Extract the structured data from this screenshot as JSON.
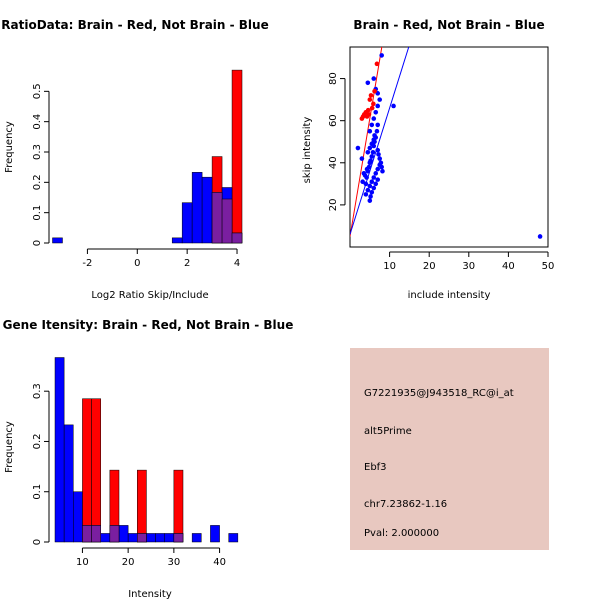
{
  "colors": {
    "red": "#ff0000",
    "blue": "#0000ff",
    "overlap": "#7a1fa0",
    "info_bg": "#e8c8c0",
    "pval": "#aa0000"
  },
  "chart_data": [
    {
      "id": "ratio",
      "type": "bar",
      "title": "RatioData: Brain - Red, Not Brain - Blue",
      "xlabel": "Log2 Ratio Skip/Include",
      "ylabel": "Frequency",
      "xlim": [
        -3.3,
        4.4
      ],
      "ylim": [
        0,
        0.6
      ],
      "xticks": [
        -2,
        0,
        2,
        4
      ],
      "yticks": [
        0,
        0.1,
        0.2,
        0.3,
        0.4,
        0.5
      ],
      "bin_width": 0.4,
      "series": [
        {
          "name": "Brain",
          "color": "red",
          "bins": [
            [
              3.2,
              0.285
            ],
            [
              3.6,
              0.145
            ],
            [
              4.0,
              0.57
            ]
          ]
        },
        {
          "name": "Not Brain",
          "color": "blue",
          "bins": [
            [
              -3.2,
              0.017
            ],
            [
              1.6,
              0.017
            ],
            [
              2.0,
              0.133
            ],
            [
              2.4,
              0.233
            ],
            [
              2.8,
              0.217
            ],
            [
              3.2,
              0.167
            ],
            [
              3.6,
              0.183
            ],
            [
              4.0,
              0.033
            ]
          ]
        }
      ]
    },
    {
      "id": "scatter",
      "type": "scatter",
      "title": "Brain - Red, Not Brain - Blue",
      "xlabel": "include intensity",
      "ylabel": "skip intensity",
      "xlim": [
        0,
        50
      ],
      "ylim": [
        0,
        95
      ],
      "xticks": [
        10,
        20,
        30,
        40,
        50
      ],
      "yticks": [
        20,
        40,
        60,
        80
      ],
      "lines": [
        {
          "color": "red",
          "intercept": 5,
          "slope": 11.2
        },
        {
          "color": "blue",
          "intercept": 6,
          "slope": 6.0
        }
      ],
      "series": [
        {
          "name": "Brain",
          "color": "red",
          "x": [
            3.0,
            3.3,
            3.6,
            4.0,
            4.3,
            4.6,
            5.0,
            5.3,
            5.6,
            5.9,
            6.2,
            4.8,
            6.8
          ],
          "y": [
            61,
            62,
            63,
            64,
            62,
            65,
            70,
            72,
            66,
            68,
            74,
            63,
            87
          ]
        },
        {
          "name": "Not Brain",
          "color": "blue",
          "x": [
            8.0,
            4.5,
            6.0,
            6.5,
            7.0,
            2.0,
            3.0,
            3.5,
            4.0,
            4.2,
            4.5,
            4.8,
            5.0,
            5.2,
            5.5,
            5.8,
            6.0,
            6.2,
            6.5,
            6.8,
            7.0,
            7.2,
            7.5,
            7.8,
            8.0,
            8.2,
            4.0,
            4.5,
            5.0,
            5.5,
            6.0,
            6.5,
            7.0,
            7.5,
            5.0,
            5.5,
            6.0,
            6.5,
            7.0,
            7.5,
            11.0,
            6.0,
            6.5,
            7.0,
            5.0,
            5.2,
            5.5,
            6.0,
            6.2,
            4.5,
            5.0,
            5.5,
            6.0,
            7.0,
            48.0,
            3.2,
            3.8,
            4.3
          ],
          "y": [
            91,
            78,
            80,
            75,
            73,
            47,
            42,
            35,
            30,
            33,
            36,
            38,
            40,
            41,
            43,
            45,
            48,
            50,
            52,
            55,
            46,
            44,
            42,
            40,
            38,
            36,
            25,
            27,
            29,
            31,
            33,
            35,
            37,
            39,
            55,
            58,
            61,
            64,
            67,
            70,
            67,
            28,
            30,
            32,
            22,
            24,
            26,
            50,
            53,
            45,
            47,
            49,
            51,
            58,
            5,
            31,
            34,
            37
          ]
        }
      ]
    },
    {
      "id": "gene",
      "type": "bar",
      "title": "Gene Itensity: Brain - Red, Not Brain - Blue",
      "xlabel": "Intensity",
      "ylabel": "Frequency",
      "xlim": [
        4,
        46
      ],
      "ylim": [
        0,
        0.37
      ],
      "xticks": [
        10,
        20,
        30,
        40
      ],
      "yticks": [
        0,
        0.1,
        0.2,
        0.3
      ],
      "bin_width": 2,
      "series": [
        {
          "name": "Brain",
          "color": "red",
          "bins": [
            [
              11,
              0.285
            ],
            [
              13,
              0.285
            ],
            [
              17,
              0.143
            ],
            [
              23,
              0.143
            ],
            [
              31,
              0.143
            ]
          ]
        },
        {
          "name": "Not Brain",
          "color": "blue",
          "bins": [
            [
              5,
              0.367
            ],
            [
              7,
              0.233
            ],
            [
              9,
              0.1
            ],
            [
              11,
              0.033
            ],
            [
              13,
              0.033
            ],
            [
              15,
              0.017
            ],
            [
              17,
              0.033
            ],
            [
              19,
              0.033
            ],
            [
              21,
              0.017
            ],
            [
              23,
              0.017
            ],
            [
              25,
              0.017
            ],
            [
              27,
              0.017
            ],
            [
              29,
              0.017
            ],
            [
              31,
              0.017
            ],
            [
              35,
              0.017
            ],
            [
              39,
              0.033
            ],
            [
              43,
              0.017
            ]
          ]
        }
      ]
    }
  ],
  "info": {
    "probe": "G7221935@J943518_RC@i_at",
    "event": "alt5Prime",
    "gene": "Ebf3",
    "location": "chr7.23862-1.16",
    "pval": "Pval: 2.000000"
  }
}
